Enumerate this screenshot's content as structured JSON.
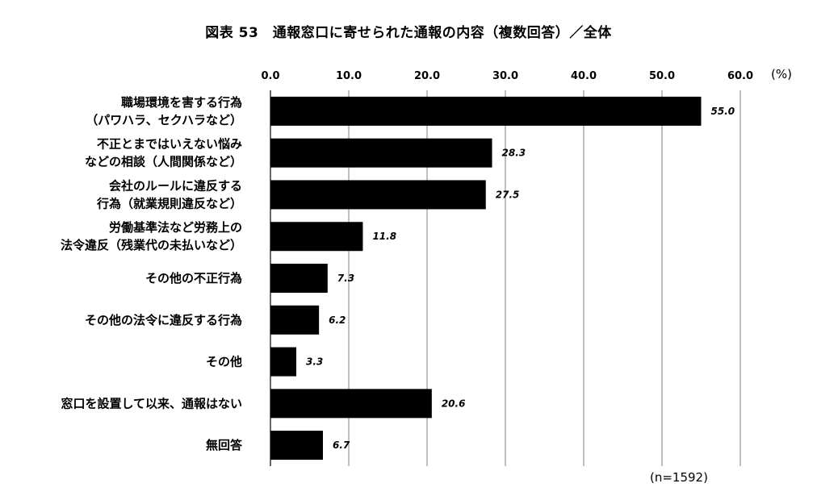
{
  "chart_data": {
    "type": "bar",
    "orientation": "horizontal",
    "title": "図表 53　通報窓口に寄せられた通報の内容（複数回答）／全体",
    "unit": "(%)",
    "xlim": [
      0,
      60
    ],
    "ticks": [
      "0.0",
      "10.0",
      "20.0",
      "30.0",
      "40.0",
      "50.0",
      "60.0"
    ],
    "grid": true,
    "categories": [
      [
        "職場環境を害する行為",
        "（パワハラ、セクハラなど）"
      ],
      [
        "不正とまではいえない悩み",
        "などの相談（人間関係など）"
      ],
      [
        "会社のルールに違反する",
        "行為（就業規則違反など）"
      ],
      [
        "労働基準法など労務上の",
        "法令違反（残業代の未払いなど）"
      ],
      [
        "その他の不正行為"
      ],
      [
        "その他の法令に違反する行為"
      ],
      [
        "その他"
      ],
      [
        "窓口を設置して以来、通報はない"
      ],
      [
        "無回答"
      ]
    ],
    "values": [
      55.0,
      28.3,
      27.5,
      11.8,
      7.3,
      6.2,
      3.3,
      20.6,
      6.7
    ],
    "value_labels": [
      "55.0",
      "28.3",
      "27.5",
      "11.8",
      "7.3",
      "6.2",
      "3.3",
      "20.6",
      "6.7"
    ],
    "note": "(n=1592)",
    "bar_color": "#000000",
    "grid_color": "#7f7f7f"
  }
}
